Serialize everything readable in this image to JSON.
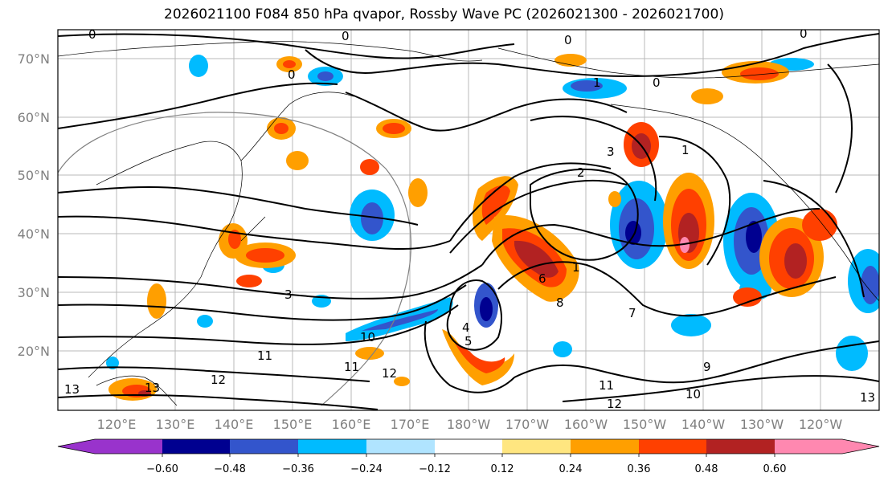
{
  "title": "2026021100 F084 850 hPa qvapor, Rossby Wave PC (2026021300 - 2026021700)",
  "lat_ticks": [
    "70°N",
    "60°N",
    "50°N",
    "40°N",
    "30°N",
    "20°N"
  ],
  "lon_ticks": [
    "120°E",
    "130°E",
    "140°E",
    "150°E",
    "160°E",
    "170°E",
    "180°W",
    "170°W",
    "160°W",
    "150°W",
    "140°W",
    "130°W",
    "120°W"
  ],
  "colorbar": {
    "colors": [
      "#9933cc",
      "#000090",
      "#3355cc",
      "#00bbff",
      "#b0e4ff",
      "#ffffff",
      "#ffe680",
      "#ff9f00",
      "#ff4000",
      "#b22222",
      "#ff88b0"
    ],
    "tick_labels": [
      "−0.60",
      "−0.48",
      "−0.36",
      "−0.24",
      "−0.12",
      "0.12",
      "0.24",
      "0.36",
      "0.48",
      "0.60"
    ]
  },
  "contour_labels": [
    "0",
    "0",
    "0",
    "0",
    "0",
    "0",
    "1",
    "1",
    "1",
    "2",
    "3",
    "3",
    "4",
    "5",
    "6",
    "7",
    "8",
    "9",
    "10",
    "10",
    "11",
    "11",
    "11",
    "12",
    "12",
    "12",
    "13",
    "13",
    "13"
  ]
}
